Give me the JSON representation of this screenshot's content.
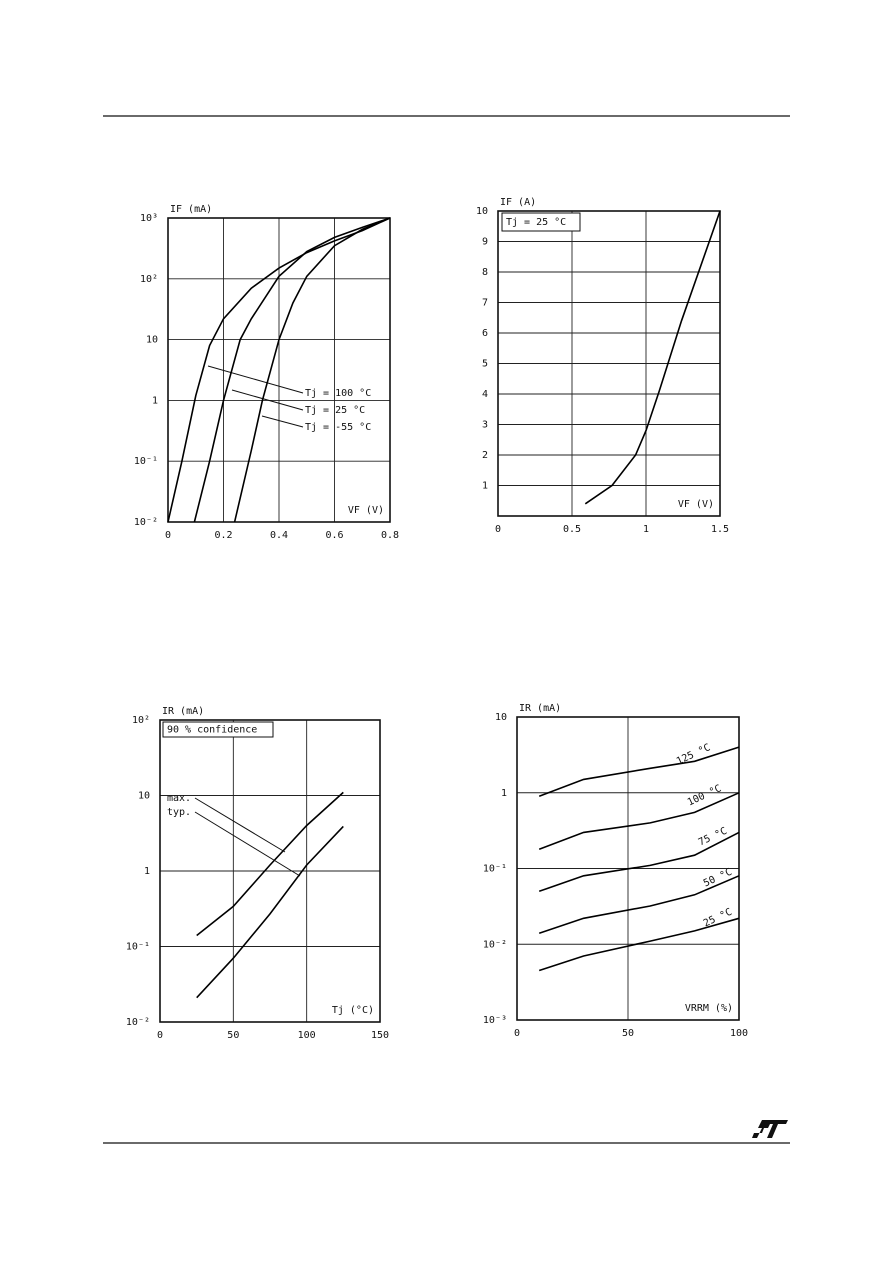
{
  "chart_data": [
    {
      "type": "line",
      "ylog": true,
      "y_label": "IF (mA)",
      "x_label": "VF (V)",
      "grid": true,
      "xlim": [
        0,
        0.8
      ],
      "xticks": [
        0,
        0.2,
        0.4,
        0.6,
        0.8
      ],
      "ylim": [
        0.01,
        1000
      ],
      "yticks": [
        {
          "value": 0.01,
          "label": "10⁻²"
        },
        {
          "value": 0.1,
          "label": "10⁻¹"
        },
        1,
        10,
        {
          "value": 100,
          "label": "10²"
        },
        {
          "value": 1000,
          "label": "10³"
        }
      ],
      "series": [
        {
          "name": "Tj = 100 °C",
          "color": "#000000",
          "x": [
            0,
            0.05,
            0.1,
            0.15,
            0.2,
            0.3,
            0.4,
            0.5,
            0.6,
            0.7,
            0.8
          ],
          "values": [
            0.01,
            0.1,
            1.2,
            8,
            22,
            70,
            150,
            270,
            420,
            620,
            1000
          ]
        },
        {
          "name": "Tj = 25 °C",
          "color": "#000000",
          "x": [
            0.095,
            0.15,
            0.2,
            0.26,
            0.3,
            0.4,
            0.5,
            0.6,
            0.7,
            0.8
          ],
          "values": [
            0.01,
            0.1,
            1,
            10,
            22,
            110,
            280,
            480,
            700,
            1000
          ]
        },
        {
          "name": "Tj = -55 °C",
          "color": "#000000",
          "x": [
            0.24,
            0.3,
            0.34,
            0.4,
            0.45,
            0.5,
            0.6,
            0.7,
            0.8
          ],
          "values": [
            0.01,
            0.15,
            1,
            10,
            40,
            110,
            350,
            650,
            1000
          ]
        }
      ]
    },
    {
      "type": "line",
      "ylog": false,
      "y_label": "IF (A)",
      "x_label": "VF (V)",
      "annotation": "Tj = 25 °C",
      "grid": true,
      "xlim": [
        0,
        1.5
      ],
      "xticks": [
        0,
        0.5,
        1,
        1.5
      ],
      "ylim": [
        0,
        10
      ],
      "yticks": [
        1,
        2,
        3,
        4,
        5,
        6,
        7,
        8,
        9,
        10
      ],
      "series": [
        {
          "name": null,
          "color": "#000000",
          "x": [
            0.59,
            0.77,
            0.93,
            1.0,
            1.09,
            1.24,
            1.5
          ],
          "values": [
            0.4,
            1,
            2,
            2.8,
            4.1,
            6.4,
            10
          ]
        }
      ]
    },
    {
      "type": "line",
      "ylog": true,
      "y_label": "IR (mA)",
      "x_label": "Tj (°C)",
      "annotation": "90 % confidence",
      "grid": true,
      "xlim": [
        0,
        150
      ],
      "xticks": [
        0,
        50,
        100,
        150
      ],
      "ylim": [
        0.01,
        100
      ],
      "yticks": [
        {
          "value": 0.01,
          "label": "10⁻²"
        },
        {
          "value": 0.1,
          "label": "10⁻¹"
        },
        1,
        10,
        {
          "value": 100,
          "label": "10²"
        }
      ],
      "series": [
        {
          "name": "max.",
          "color": "#000000",
          "x": [
            25,
            50,
            75,
            100,
            125
          ],
          "values": [
            0.14,
            0.34,
            1.2,
            4,
            11
          ]
        },
        {
          "name": "typ.",
          "color": "#000000",
          "x": [
            25,
            50,
            75,
            100,
            125
          ],
          "values": [
            0.021,
            0.07,
            0.27,
            1.2,
            3.9
          ]
        }
      ]
    },
    {
      "type": "line",
      "ylog": true,
      "y_label": "IR (mA)",
      "x_label": "VRRM (%)",
      "grid": true,
      "xlim": [
        0,
        100
      ],
      "xticks": [
        0,
        50,
        100
      ],
      "ylim": [
        0.001,
        10
      ],
      "yticks": [
        {
          "value": 0.001,
          "label": "10⁻³"
        },
        {
          "value": 0.01,
          "label": "10⁻²"
        },
        {
          "value": 0.1,
          "label": "10⁻¹"
        },
        1,
        10
      ],
      "x": [
        10,
        30,
        60,
        80,
        100
      ],
      "series": [
        {
          "name": "125 °C",
          "color": "#000000",
          "values": [
            0.9,
            1.5,
            2.1,
            2.6,
            4
          ]
        },
        {
          "name": "100 °C",
          "color": "#000000",
          "values": [
            0.18,
            0.3,
            0.4,
            0.55,
            1
          ]
        },
        {
          "name": "75 °C",
          "color": "#000000",
          "values": [
            0.05,
            0.08,
            0.11,
            0.15,
            0.3
          ]
        },
        {
          "name": "50 °C",
          "color": "#000000",
          "values": [
            0.014,
            0.022,
            0.032,
            0.045,
            0.08
          ]
        },
        {
          "name": "25 °C",
          "color": "#000000",
          "values": [
            0.0045,
            0.007,
            0.011,
            0.015,
            0.022
          ]
        }
      ]
    }
  ]
}
